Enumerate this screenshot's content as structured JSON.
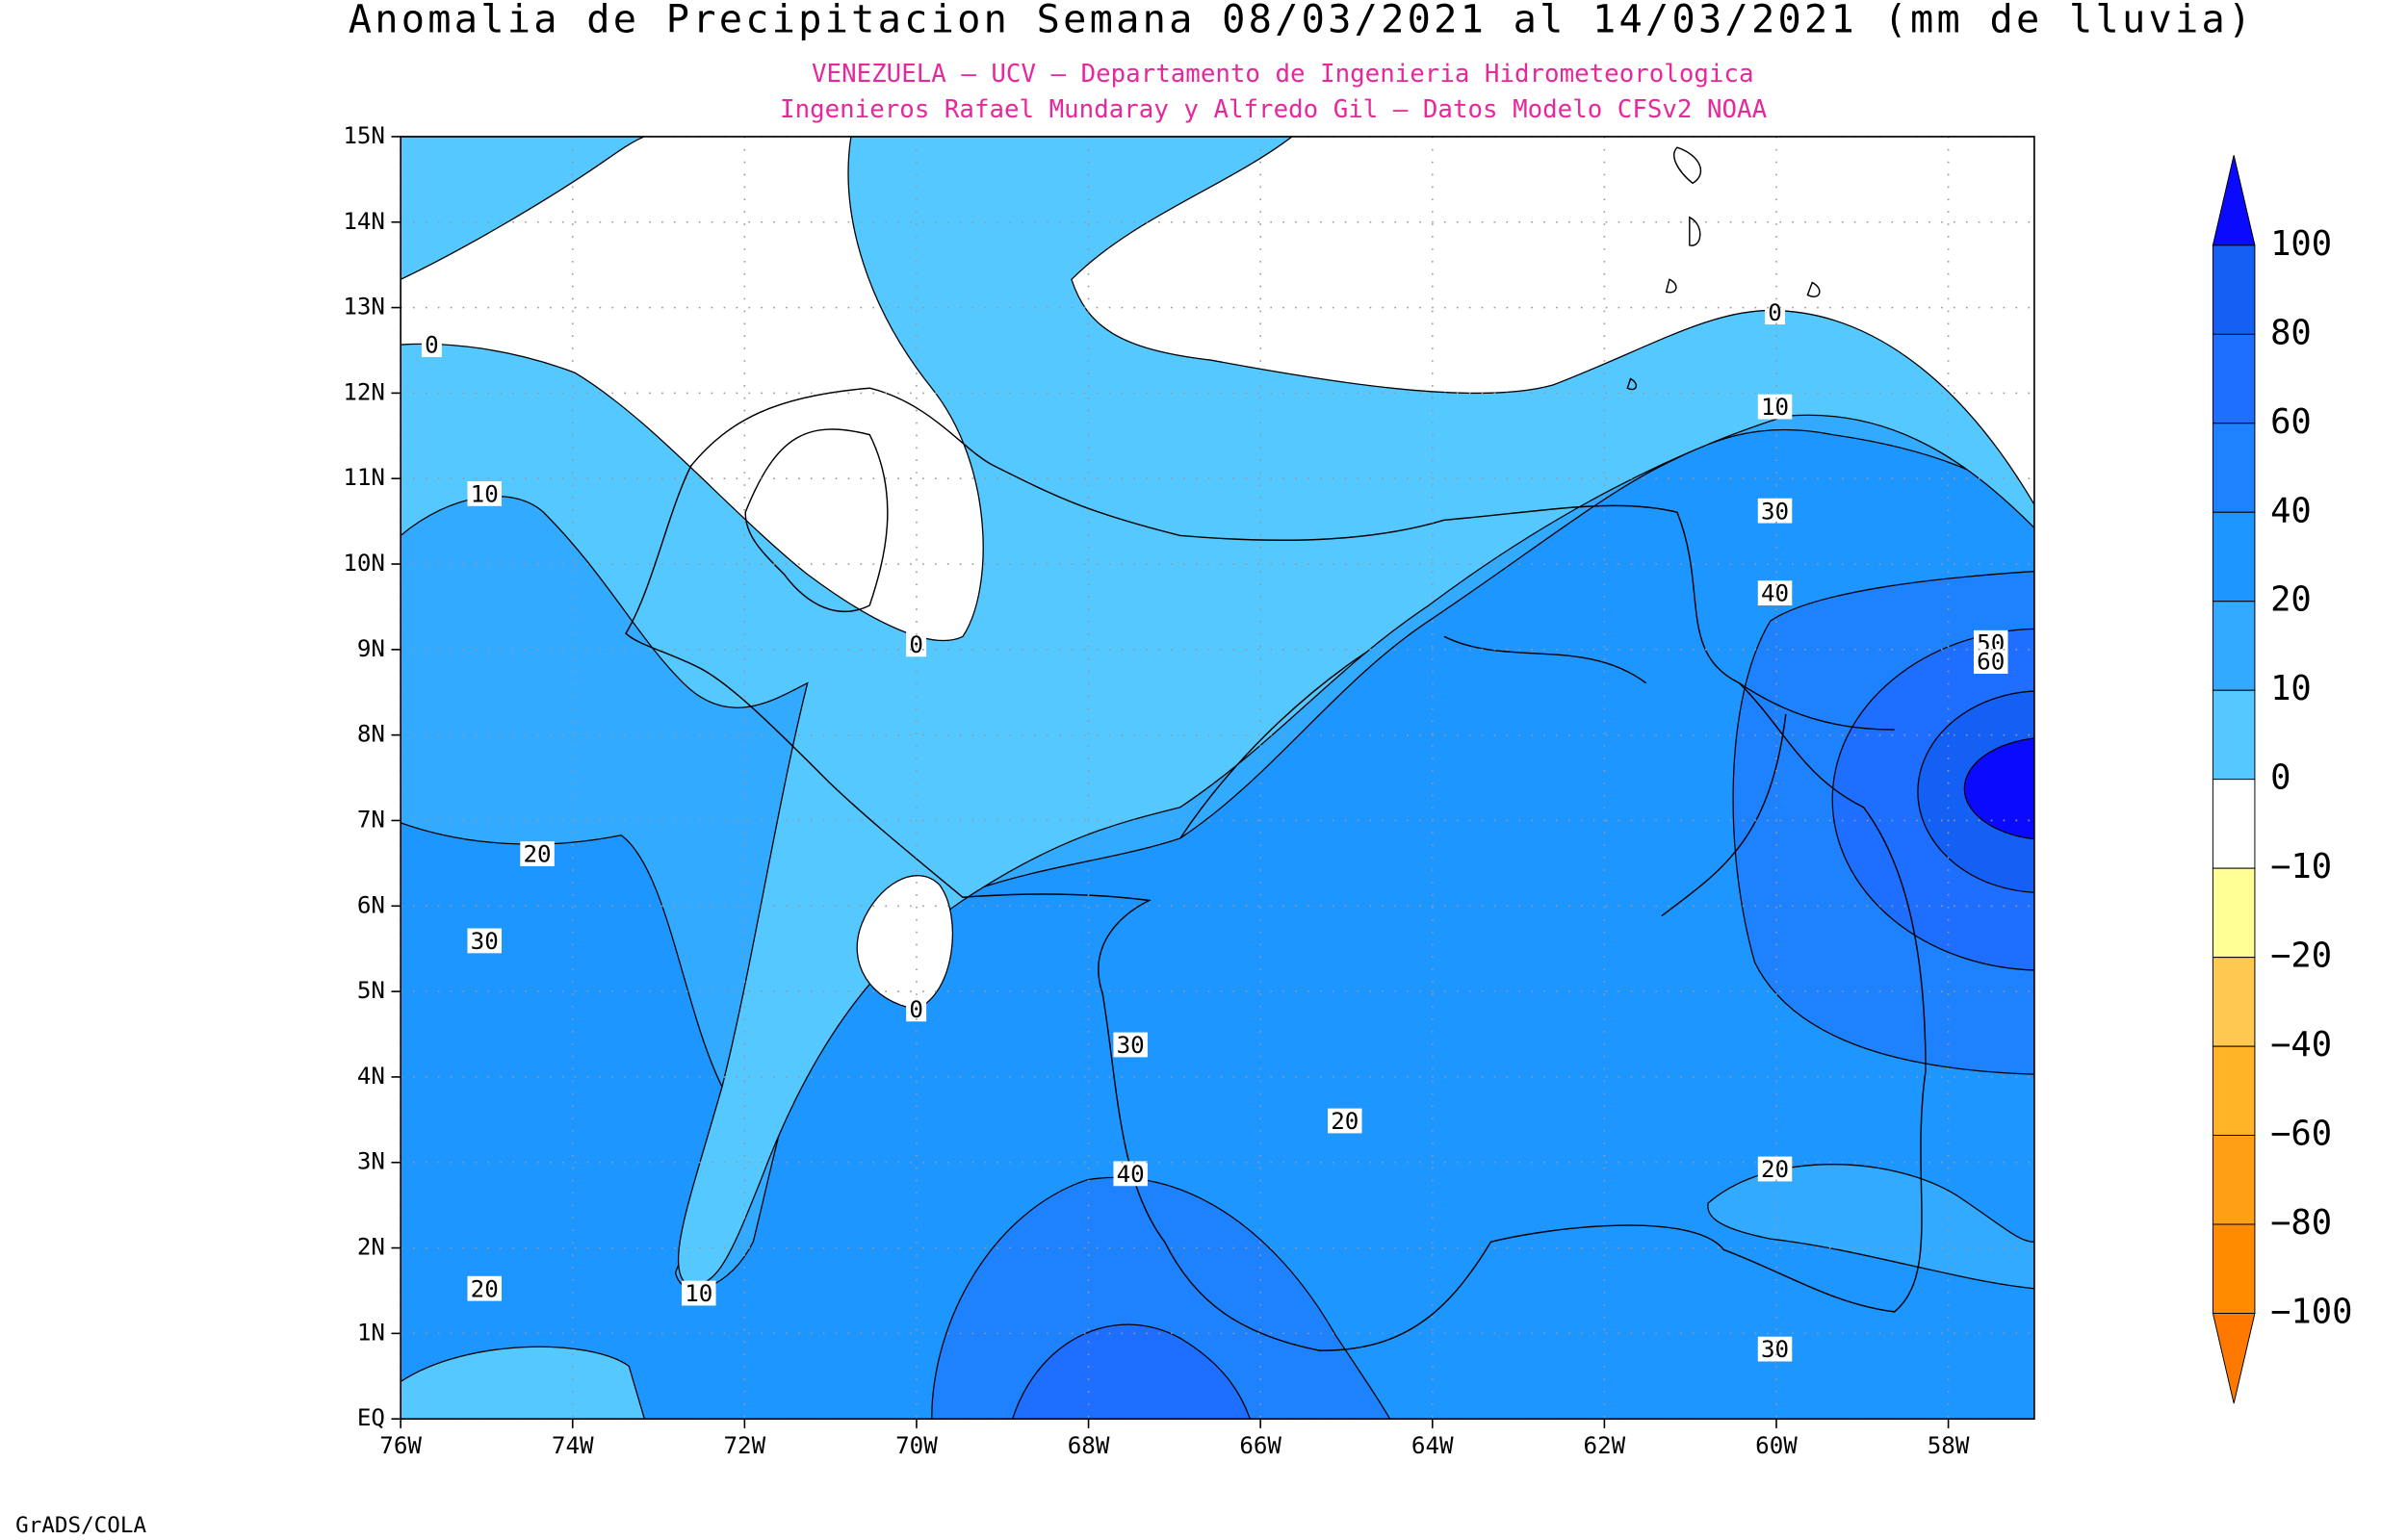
{
  "header": {
    "title": "Anomalia de Precipitacion Semana 08/03/2021 al 14/03/2021 (mm de lluvia)",
    "subtitle_1": "VENEZUELA – UCV – Departamento de Ingenieria Hidrometeorologica",
    "subtitle_2": "Ingenieros Rafael Mundaray y Alfredo Gil – Datos Modelo CFSv2 NOAA"
  },
  "map": {
    "lat_labels": [
      "EQ",
      "1N",
      "2N",
      "3N",
      "4N",
      "5N",
      "6N",
      "7N",
      "8N",
      "9N",
      "10N",
      "11N",
      "12N",
      "13N",
      "14N",
      "15N"
    ],
    "lon_labels": [
      "76W",
      "74W",
      "72W",
      "70W",
      "68W",
      "66W",
      "64W",
      "62W",
      "60W",
      "58W"
    ],
    "contour_labels": [
      "0",
      "10",
      "0",
      "10",
      "30",
      "40",
      "50",
      "60",
      "0",
      "20",
      "30",
      "0",
      "30",
      "40",
      "20",
      "20",
      "20",
      "10",
      "30"
    ]
  },
  "colorbar": {
    "labels": [
      "100",
      "80",
      "60",
      "40",
      "20",
      "10",
      "0",
      "−10",
      "−20",
      "−40",
      "−60",
      "−80",
      "−100"
    ],
    "colors": [
      "#0a0aff",
      "#1460f5",
      "#1e6eff",
      "#1e82ff",
      "#1e96ff",
      "#32aaff",
      "#55c8ff",
      "#ffffff",
      "#ffff96",
      "#ffc850",
      "#ffb428",
      "#ffa014",
      "#ff8c00",
      "#ff7800"
    ]
  },
  "footer": {
    "credit": "GrADS/COLA"
  }
}
